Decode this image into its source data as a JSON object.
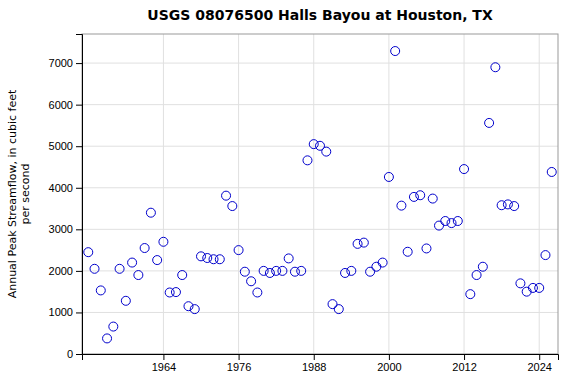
{
  "chart_data": {
    "type": "scatter",
    "title": "USGS 08076500 Halls Bayou at Houston, TX",
    "ylabel": "Annual Peak Streamflow, in cubic feet\nper second",
    "x": [
      1952,
      1953,
      1954,
      1955,
      1956,
      1957,
      1958,
      1959,
      1960,
      1961,
      1962,
      1963,
      1964,
      1965,
      1966,
      1967,
      1968,
      1969,
      1970,
      1971,
      1972,
      1973,
      1974,
      1975,
      1976,
      1977,
      1978,
      1979,
      1980,
      1981,
      1982,
      1983,
      1984,
      1985,
      1986,
      1987,
      1988,
      1989,
      1990,
      1991,
      1992,
      1993,
      1994,
      1995,
      1996,
      1997,
      1998,
      1999,
      2000,
      2001,
      2002,
      2003,
      2004,
      2005,
      2006,
      2007,
      2008,
      2009,
      2010,
      2011,
      2012,
      2013,
      2014,
      2015,
      2016,
      2017,
      2018,
      2019,
      2020,
      2021,
      2022,
      2023,
      2024,
      2025,
      2026
    ],
    "values": [
      2450,
      2050,
      1530,
      375,
      660,
      2050,
      1280,
      2200,
      1900,
      2550,
      3400,
      2260,
      2700,
      1480,
      1490,
      1900,
      1150,
      1080,
      2350,
      2310,
      2280,
      2280,
      3810,
      3560,
      2500,
      1980,
      1750,
      1480,
      2000,
      1950,
      2000,
      2000,
      2300,
      1980,
      2000,
      4660,
      5050,
      5010,
      4870,
      1200,
      1080,
      1950,
      2000,
      2650,
      2680,
      1980,
      2100,
      2200,
      4260,
      7290,
      3570,
      2460,
      3780,
      3820,
      2540,
      3740,
      3090,
      3200,
      3150,
      3200,
      4450,
      1440,
      1900,
      2100,
      5560,
      6900,
      3580,
      3600,
      3560,
      1700,
      1500,
      1590,
      1590,
      2380,
      4380
    ],
    "color": "#0000cc",
    "xlim": [
      1951,
      2027
    ],
    "ylim": [
      0,
      7700
    ],
    "xticks": [
      1964,
      1976,
      1988,
      2000,
      2012,
      2024
    ],
    "yticks": [
      0,
      1000,
      2000,
      3000,
      4000,
      5000,
      6000,
      7000
    ],
    "grid": true
  }
}
